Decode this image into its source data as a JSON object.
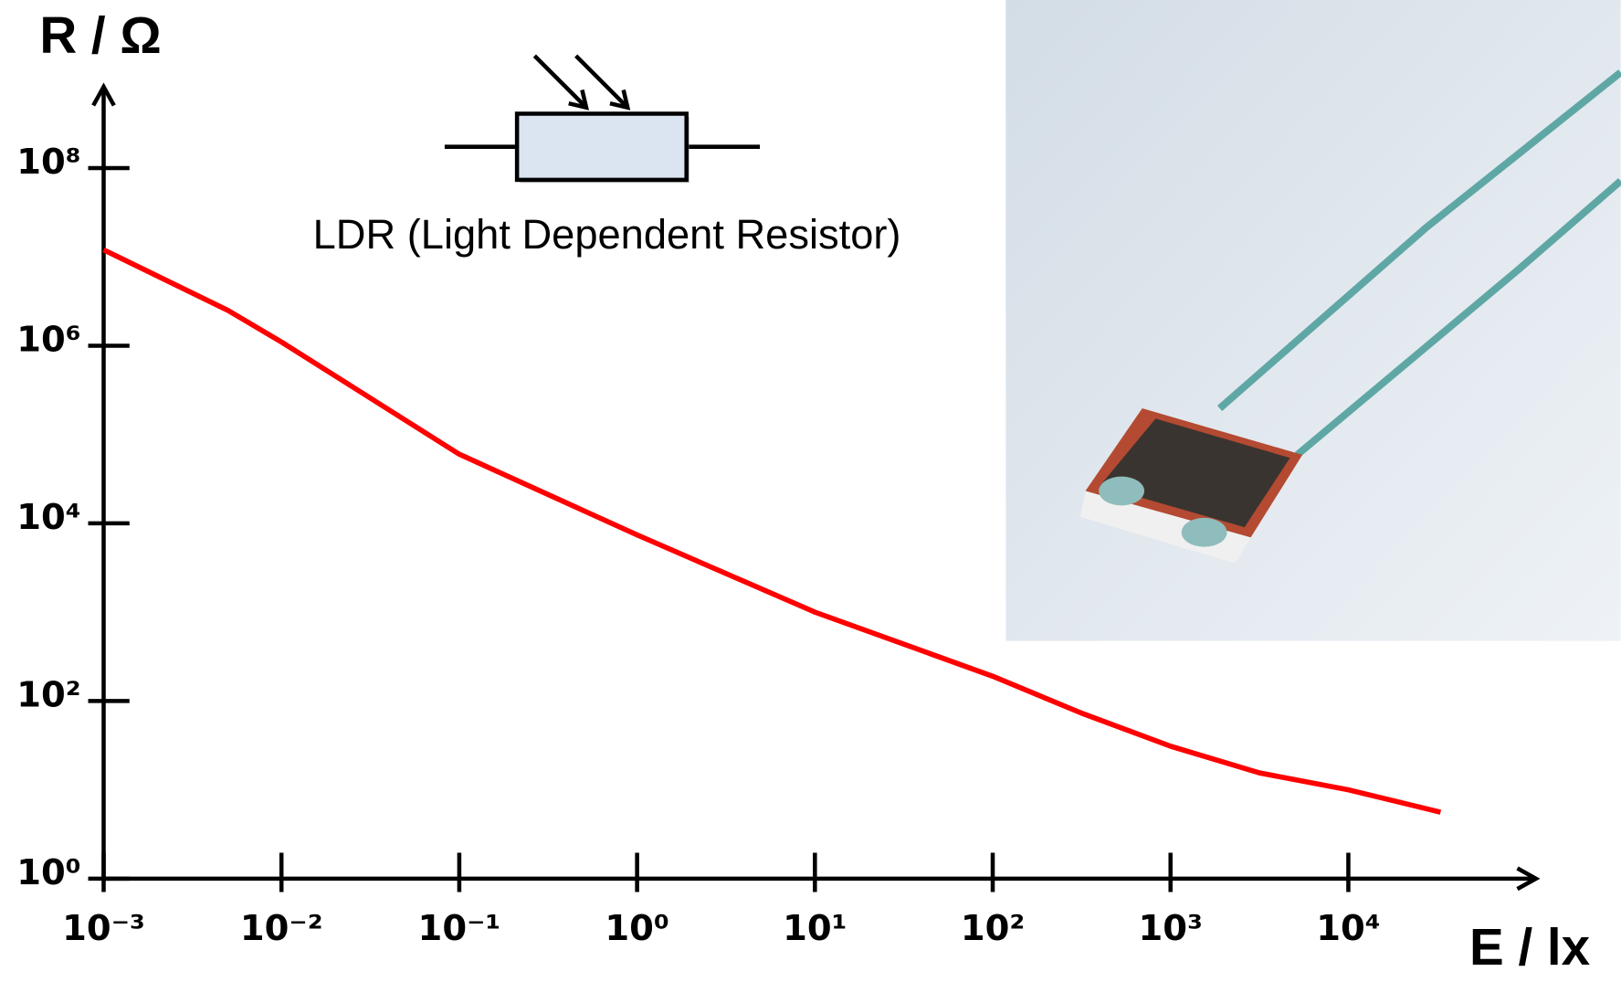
{
  "chart_data": {
    "type": "line",
    "y_label": "R / Ω",
    "x_label": "E / lx",
    "annotation": "LDR (Light Dependent Resistor)",
    "log_x": true,
    "log_y": true,
    "x": [
      0.001,
      0.005,
      0.01,
      0.1,
      1,
      10,
      100,
      316,
      1000,
      3162,
      10000,
      33000
    ],
    "values": [
      12000000,
      2500000,
      1100000,
      60000,
      7400,
      1000,
      190,
      73,
      31,
      15.5,
      10,
      5.6
    ],
    "color": "#ff0000",
    "xlim": [
      0.001,
      112000
    ],
    "ylim": [
      1,
      800000000
    ],
    "xticks": [
      {
        "value": 0.001,
        "label": "10⁻³"
      },
      {
        "value": 0.01,
        "label": "10⁻²"
      },
      {
        "value": 0.1,
        "label": "10⁻¹"
      },
      {
        "value": 1,
        "label": "10⁰"
      },
      {
        "value": 10,
        "label": "10¹"
      },
      {
        "value": 100,
        "label": "10²"
      },
      {
        "value": 1000,
        "label": "10³"
      },
      {
        "value": 10000,
        "label": "10⁴"
      }
    ],
    "yticks": [
      {
        "value": 1,
        "label": "10⁰"
      },
      {
        "value": 100,
        "label": "10²"
      },
      {
        "value": 10000,
        "label": "10⁴"
      },
      {
        "value": 1000000,
        "label": "10⁶"
      },
      {
        "value": 100000000,
        "label": "10⁸"
      }
    ]
  }
}
